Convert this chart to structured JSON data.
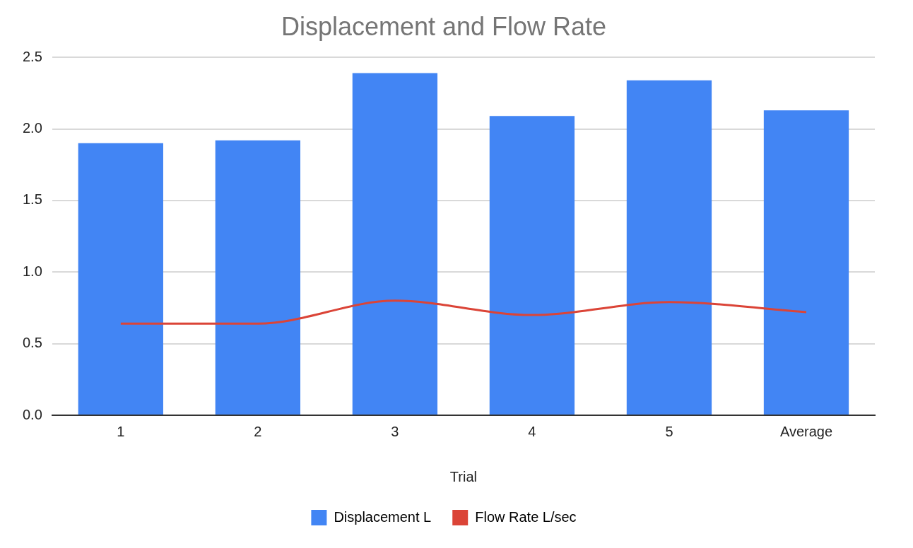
{
  "chart_data": {
    "type": "bar",
    "title": "Displacement and Flow Rate",
    "xlabel": "Trial",
    "categories": [
      "1",
      "2",
      "3",
      "4",
      "5",
      "Average"
    ],
    "series": [
      {
        "name": "Displacement L",
        "color": "#4285f4",
        "values": [
          1.9,
          1.92,
          2.39,
          2.09,
          2.34,
          2.13
        ]
      },
      {
        "name": "Flow Rate L/sec",
        "type": "line",
        "color": "#db4437",
        "values": [
          0.64,
          0.64,
          0.8,
          0.7,
          0.79,
          0.72
        ]
      }
    ],
    "ylim": [
      0,
      2.5
    ],
    "yticks": [
      {
        "value": 0,
        "label": "0.0"
      },
      {
        "value": 0.5,
        "label": "0.5"
      },
      {
        "value": 1,
        "label": "1.0"
      },
      {
        "value": 1.5,
        "label": "1.5"
      },
      {
        "value": 2,
        "label": "2.0"
      },
      {
        "value": 2.5,
        "label": "2.5"
      }
    ],
    "grid": "y",
    "legend": "bottom",
    "marker": "none"
  }
}
